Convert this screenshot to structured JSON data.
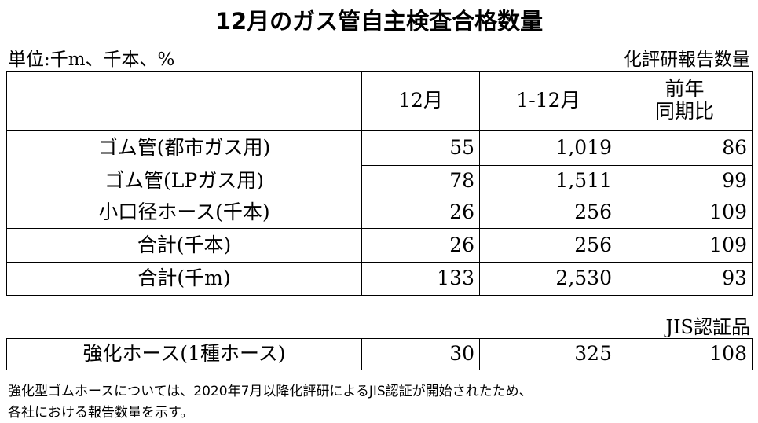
{
  "header": {
    "title": "12月のガス管自主検査合格数量",
    "unit": "単位:千m、千本、%",
    "source": "化評研報告数量"
  },
  "table": {
    "columns": [
      "12月",
      "1-12月",
      "前年\n同期比"
    ],
    "rows": [
      [
        "ゴム管(都市ガス用)",
        "55",
        "1,019",
        "86"
      ],
      [
        "ゴム管(LPガス用)",
        "78",
        "1,511",
        "99"
      ],
      [
        "小口径ホース(千本)",
        "26",
        "256",
        "109"
      ],
      [
        "合計(千本)",
        "26",
        "256",
        "109"
      ],
      [
        "合計(千m)",
        "133",
        "2,530",
        "93"
      ]
    ]
  },
  "jis": {
    "label": "JIS認証品",
    "rows": [
      [
        "強化ホース(1種ホース)",
        "30",
        "325",
        "108"
      ]
    ]
  },
  "footnote": [
    "強化型ゴムホースについては、2020年7月以降化評研によるJIS認証が開始されたため、",
    "各社における報告数量を示す。"
  ]
}
